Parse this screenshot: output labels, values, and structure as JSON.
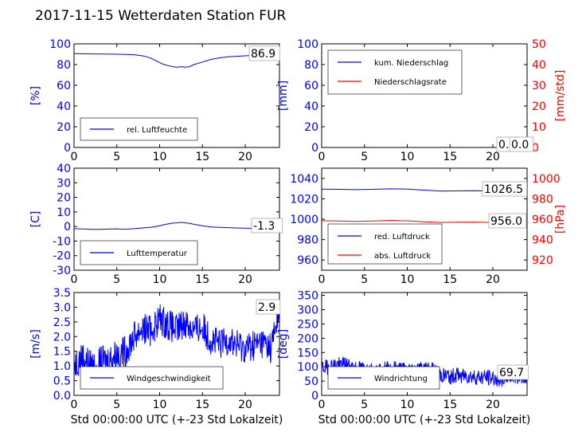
{
  "title": "2017-11-15 Wetterdaten Station FUR",
  "colors": {
    "blue": "#0000ff",
    "red": "#ff0000",
    "lightblue": "#8080ff",
    "black": "#000000"
  },
  "chart_data": [
    {
      "type": "line",
      "id": "humidity",
      "ylabel": "[%]",
      "ylim": [
        0,
        100
      ],
      "yticks": [
        0,
        20,
        40,
        60,
        80,
        100
      ],
      "xlim": [
        0,
        24
      ],
      "xticks": [
        0,
        5,
        10,
        15,
        20
      ],
      "legend": "bottom-left",
      "annotation": "86.9",
      "series": [
        {
          "name": "rel. Luftfeuchte",
          "color": "blue",
          "x": [
            0,
            1,
            2,
            3,
            4,
            5,
            6,
            7,
            8,
            8.5,
            9,
            9.5,
            10,
            10.5,
            11,
            11.5,
            12,
            12.5,
            13,
            13.5,
            14,
            15,
            16,
            17,
            18,
            19,
            20,
            21,
            22,
            23,
            24
          ],
          "y": [
            90.5,
            90.4,
            90.3,
            90.2,
            90.1,
            90,
            89.8,
            89.5,
            88.5,
            87.5,
            86,
            84,
            82,
            80,
            79,
            78,
            77.5,
            78,
            77.5,
            78,
            80,
            82.5,
            85,
            86.5,
            87.5,
            88,
            88.5,
            89,
            88,
            87,
            86.9
          ]
        }
      ]
    },
    {
      "type": "line",
      "id": "precipitation",
      "ylabel": "[mm]",
      "ylim": [
        0,
        100
      ],
      "yticks": [
        0,
        20,
        40,
        60,
        80,
        100
      ],
      "y2label": "[mm/std]",
      "y2lim": [
        0,
        50
      ],
      "y2ticks": [
        0,
        10,
        20,
        30,
        40,
        50
      ],
      "xlim": [
        0,
        24
      ],
      "xticks": [
        0,
        5,
        10,
        15,
        20
      ],
      "legend": "top-left",
      "annotations": [
        "0.0",
        "0.0"
      ],
      "series": [
        {
          "name": "kum. Niederschlag",
          "color": "blue",
          "axis": "left",
          "x": [
            0,
            24
          ],
          "y": [
            0,
            0
          ]
        },
        {
          "name": "Niederschlagsrate",
          "color": "red",
          "axis": "right",
          "x": [
            0,
            24
          ],
          "y": [
            0,
            0
          ]
        }
      ]
    },
    {
      "type": "line",
      "id": "temperature",
      "ylabel": "[C]",
      "ylim": [
        -30,
        40
      ],
      "yticks": [
        -30,
        -20,
        -10,
        0,
        10,
        20,
        30,
        40
      ],
      "xlim": [
        0,
        24
      ],
      "xticks": [
        0,
        5,
        10,
        15,
        20
      ],
      "legend": "bottom-left",
      "annotation": "-1.3",
      "series": [
        {
          "name": "Lufttemperatur",
          "color": "blue",
          "x": [
            0,
            1,
            2,
            3,
            4,
            5,
            6,
            7,
            8,
            9,
            10,
            10.5,
            11,
            11.5,
            12,
            12.5,
            13,
            13.5,
            14,
            15,
            16,
            17,
            18,
            19,
            20,
            21,
            22,
            23,
            24
          ],
          "y": [
            -1.5,
            -1.7,
            -2,
            -2,
            -1.8,
            -1.6,
            -1.9,
            -1.5,
            -1,
            -0.5,
            0.5,
            1.2,
            1.8,
            2.3,
            2.5,
            2.8,
            2.5,
            2.2,
            1.5,
            0.5,
            -0.3,
            -0.6,
            -0.8,
            -1,
            -1.2,
            -1.3,
            -1.4,
            -1.3,
            -1.3
          ]
        }
      ]
    },
    {
      "type": "line",
      "id": "pressure",
      "ylim": [
        950,
        1050
      ],
      "yticks": [
        960,
        980,
        1000,
        1020,
        1040
      ],
      "y2label": "[hPa]",
      "y2lim": [
        910,
        1010
      ],
      "y2ticks": [
        920,
        940,
        960,
        980,
        1000
      ],
      "xlim": [
        0,
        24
      ],
      "xticks": [
        0,
        5,
        10,
        15,
        20
      ],
      "legend": "bottom-left",
      "annotations": [
        "1026.5",
        "956.0"
      ],
      "series": [
        {
          "name": "red. Luftdruck",
          "color": "blue",
          "axis": "left",
          "x": [
            0,
            2,
            4,
            6,
            8,
            10,
            12,
            14,
            16,
            18,
            20,
            22,
            24
          ],
          "y": [
            1029.5,
            1029.3,
            1029,
            1029.3,
            1029.8,
            1029.5,
            1028.5,
            1027.5,
            1027.8,
            1028,
            1027.5,
            1027,
            1026.5
          ]
        },
        {
          "name": "abs. Luftdruck",
          "color": "red",
          "axis": "right",
          "x": [
            0,
            2,
            4,
            6,
            8,
            10,
            12,
            14,
            16,
            18,
            20,
            22,
            24
          ],
          "y": [
            958.5,
            958.2,
            957.8,
            958.2,
            958.8,
            958.4,
            957.5,
            956.8,
            957,
            957.2,
            956.7,
            956.3,
            956
          ]
        }
      ]
    },
    {
      "type": "line",
      "id": "wind_speed",
      "ylabel": "[m/s]",
      "ylim": [
        0,
        3.5
      ],
      "yticks": [
        "0.0",
        "0.5",
        "1.0",
        "1.5",
        "2.0",
        "2.5",
        "3.0",
        "3.5"
      ],
      "xlim": [
        0,
        24
      ],
      "xticks": [
        0,
        5,
        10,
        15,
        20
      ],
      "xlabel": "Std 00:00:00 UTC (+-23 Std Lokalzeit)",
      "legend": "bottom-left",
      "annotation": "2.9",
      "series": [
        {
          "name": "Windgeschwindigkeit",
          "color": "blue",
          "x": [
            0,
            1,
            2,
            3,
            4,
            5,
            6,
            7,
            8,
            9,
            10,
            11,
            12,
            13,
            14,
            15,
            16,
            17,
            18,
            19,
            20,
            21,
            22,
            23,
            24
          ],
          "y": [
            1.1,
            1.3,
            1.0,
            1.1,
            1.2,
            1.4,
            1.5,
            2.0,
            2.3,
            2.2,
            2.6,
            2.4,
            2.2,
            2.5,
            2.2,
            2.3,
            1.9,
            1.7,
            1.9,
            1.7,
            1.6,
            1.7,
            1.8,
            1.6,
            2.9
          ],
          "noise": 0.55
        }
      ]
    },
    {
      "type": "line",
      "id": "wind_direction",
      "ylabel": "[deg]",
      "ylim": [
        0,
        360
      ],
      "yticks": [
        0,
        50,
        100,
        150,
        200,
        250,
        300,
        350
      ],
      "xlim": [
        0,
        24
      ],
      "xticks": [
        0,
        5,
        10,
        15,
        20
      ],
      "xlabel": "Std 00:00:00 UTC (+-23 Std Lokalzeit)",
      "legend": "bottom-left",
      "annotation": "69.7",
      "series": [
        {
          "name": "Windrichtung",
          "color": "blue",
          "x": [
            0,
            1,
            2,
            3,
            4,
            5,
            6,
            7,
            8,
            9,
            10,
            11,
            12,
            13,
            14,
            15,
            16,
            17,
            18,
            19,
            20,
            21,
            22,
            23,
            24
          ],
          "y": [
            95,
            100,
            110,
            105,
            95,
            90,
            85,
            90,
            95,
            92,
            88,
            90,
            92,
            90,
            70,
            65,
            72,
            68,
            64,
            62,
            60,
            58,
            66,
            68,
            69.7
          ],
          "noise": 28
        }
      ]
    }
  ]
}
